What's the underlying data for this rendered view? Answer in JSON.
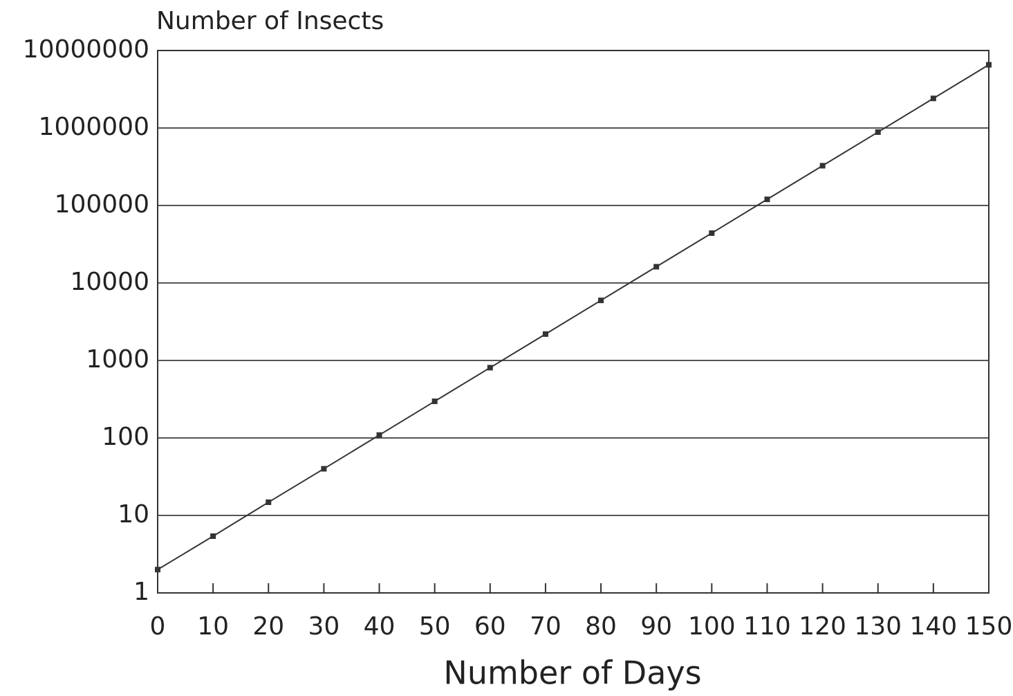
{
  "chart_data": {
    "type": "line",
    "title": "Number of Insects",
    "x_label": "Number of Days",
    "x": [
      0,
      10,
      20,
      30,
      40,
      50,
      60,
      70,
      80,
      90,
      100,
      110,
      120,
      130,
      140,
      150
    ],
    "series": [
      {
        "name": "Insects",
        "color": "#333333",
        "values": [
          2,
          5.4,
          14.8,
          40,
          109,
          297,
          807,
          2190,
          5960,
          16200,
          44000,
          120000,
          326000,
          885000,
          2410000,
          6540000
        ]
      }
    ],
    "xlim": [
      0,
      150
    ],
    "xticks": [
      0,
      10,
      20,
      30,
      40,
      50,
      60,
      70,
      80,
      90,
      100,
      110,
      120,
      130,
      140,
      150
    ],
    "ylim": [
      1,
      10000000
    ],
    "yticks": [
      1,
      10,
      100,
      1000,
      10000,
      100000,
      1000000,
      10000000
    ],
    "log_y": true,
    "grid": true
  }
}
